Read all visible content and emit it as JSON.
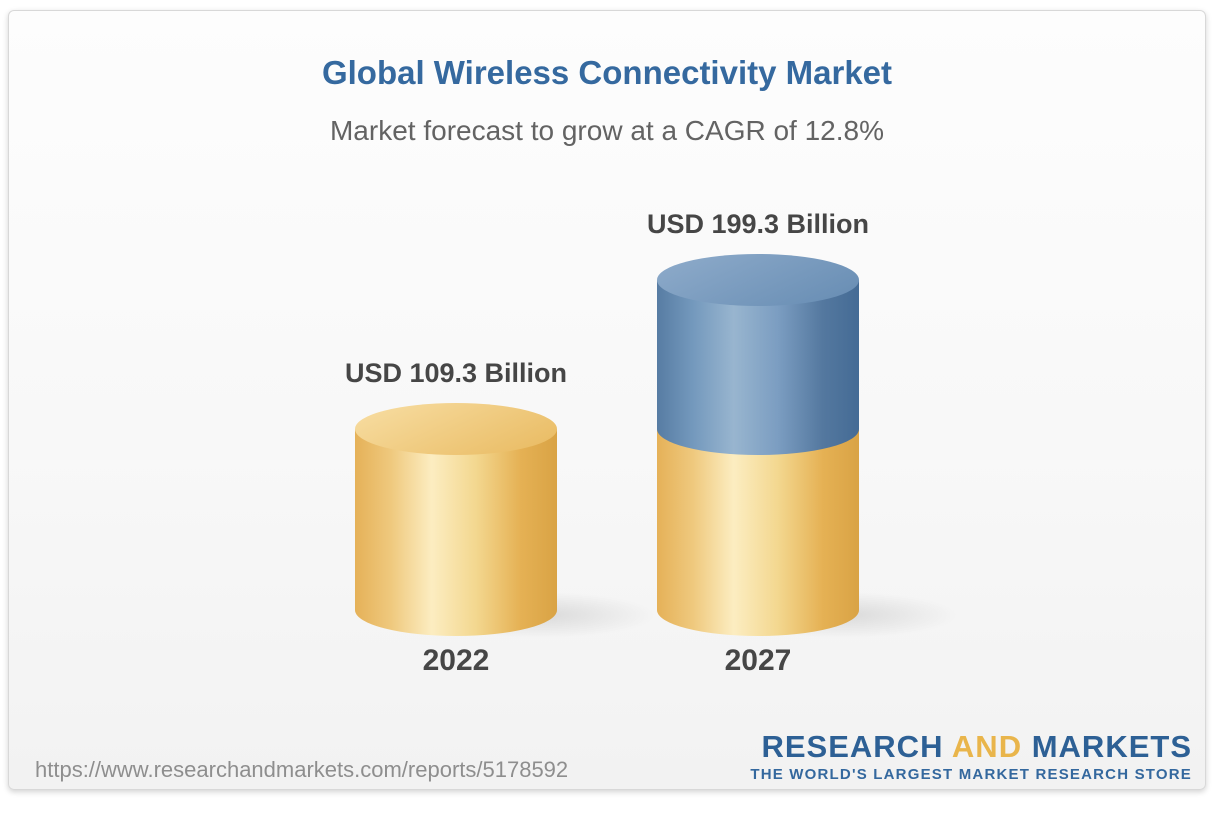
{
  "chart_data": {
    "type": "bar",
    "variant": "3d-stacked-cylinders",
    "title": "Global Wireless Connectivity Market",
    "subtitle": "Market forecast to grow at a CAGR of 12.8%",
    "cagr_percent": 12.8,
    "unit": "USD Billion",
    "categories": [
      "2022",
      "2027"
    ],
    "values": [
      109.3,
      199.3
    ],
    "value_labels": [
      "USD 109.3 Billion",
      "USD 199.3 Billion"
    ],
    "stacking_note": "2027 cylinder: gold base segment equals the 2022 value (109.3), blue top segment is the incremental growth (90.0)",
    "legend": false,
    "axes": false,
    "colors": {
      "base_gold": "#efc371",
      "growth_blue": "#6f94b9",
      "title_blue": "#35699f",
      "label_gray": "#464646"
    }
  },
  "footer": {
    "source_url": "https://www.researchandmarkets.com/reports/5178592",
    "logo": {
      "word1": "RESEARCH",
      "word2": "AND",
      "word3": "MARKETS",
      "tagline": "THE WORLD'S LARGEST MARKET RESEARCH STORE",
      "blue": "#2d6095",
      "gold": "#e9b54b"
    }
  }
}
